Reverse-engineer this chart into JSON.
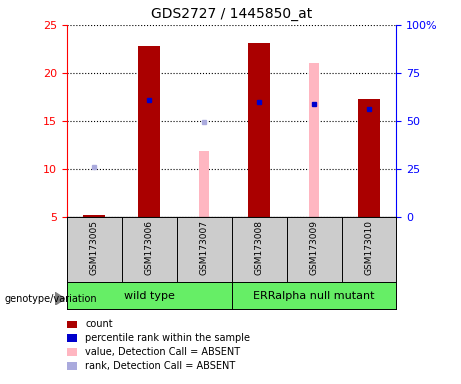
{
  "title": "GDS2727 / 1445850_at",
  "samples": [
    "GSM173005",
    "GSM173006",
    "GSM173007",
    "GSM173008",
    "GSM173009",
    "GSM173010"
  ],
  "count_values": [
    5.2,
    22.8,
    null,
    23.1,
    null,
    17.3
  ],
  "rank_values": [
    null,
    17.2,
    null,
    17.0,
    16.8,
    16.2
  ],
  "absent_value_values": [
    null,
    null,
    11.9,
    null,
    21.0,
    null
  ],
  "absent_rank_values": [
    10.2,
    null,
    14.9,
    null,
    null,
    null
  ],
  "ylim_left": [
    5,
    25
  ],
  "ylim_right": [
    0,
    100
  ],
  "yticks_left": [
    5,
    10,
    15,
    20,
    25
  ],
  "yticks_right": [
    0,
    25,
    50,
    75,
    100
  ],
  "ytick_labels_right": [
    "0",
    "25",
    "50",
    "75",
    "100%"
  ],
  "count_color": "#AA0000",
  "rank_color": "#0000CC",
  "absent_value_color": "#FFB6C1",
  "absent_rank_color": "#AAAADD",
  "sample_box_color": "#CCCCCC",
  "green_color": "#66EE66",
  "group_boundaries": [
    [
      0,
      3,
      "wild type"
    ],
    [
      3,
      6,
      "ERRalpha null mutant"
    ]
  ],
  "legend_items": [
    {
      "label": "count",
      "color": "#AA0000"
    },
    {
      "label": "percentile rank within the sample",
      "color": "#0000CC"
    },
    {
      "label": "value, Detection Call = ABSENT",
      "color": "#FFB6C1"
    },
    {
      "label": "rank, Detection Call = ABSENT",
      "color": "#AAAADD"
    }
  ],
  "bar_width": 0.4,
  "thin_bar_width": 0.18
}
